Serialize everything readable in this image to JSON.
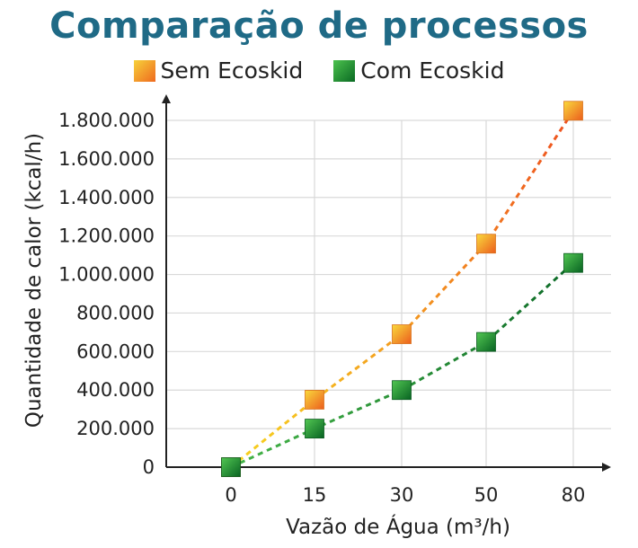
{
  "chart_data": {
    "type": "line",
    "title": "Comparação de processos",
    "xlabel": "Vazão de Água (m³/h)",
    "ylabel": "Quantidade de calor (kcal/h)",
    "categories": [
      "0",
      "15",
      "30",
      "50",
      "80"
    ],
    "ylim": [
      0,
      1800000
    ],
    "yticks": [
      0,
      200000,
      400000,
      600000,
      800000,
      1000000,
      1200000,
      1400000,
      1600000,
      1800000
    ],
    "ytick_labels": [
      "0",
      "200.000",
      "400.000",
      "600.000",
      "800.000",
      "1.000.000",
      "1.200.000",
      "1.400.000",
      "1.600.000",
      "1.800.000"
    ],
    "grid": true,
    "legend_position": "top",
    "series": [
      {
        "name": "Sem Ecoskid",
        "values": [
          0,
          350000,
          690000,
          1160000,
          1850000
        ],
        "color_start": "#f5d020",
        "color_end": "#ee5a1e"
      },
      {
        "name": "Com Ecoskid",
        "values": [
          0,
          200000,
          400000,
          650000,
          1060000
        ],
        "color_start": "#3cb043",
        "color_end": "#0b6b24"
      }
    ]
  }
}
